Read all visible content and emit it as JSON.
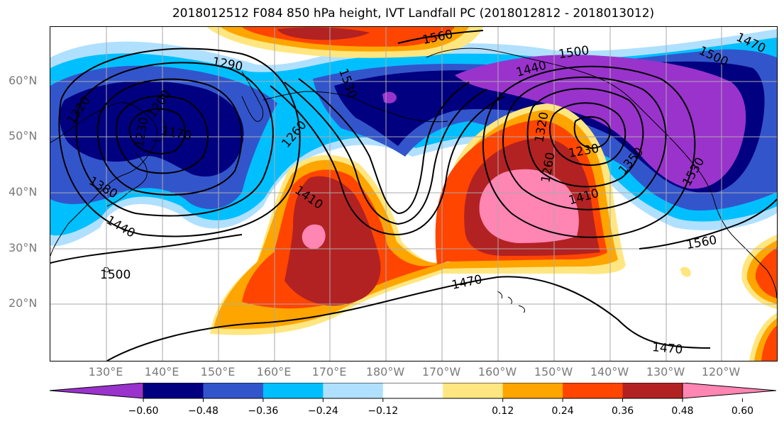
{
  "title": "2018012512 F084 850 hPa height, IVT Landfall PC (2018012812 - 2018013012)",
  "lat_ticks": [
    "60°N",
    "50°N",
    "40°N",
    "30°N",
    "20°N"
  ],
  "lon_ticks": [
    "130°E",
    "140°E",
    "150°E",
    "160°E",
    "170°E",
    "180°W",
    "170°W",
    "160°W",
    "150°W",
    "140°W",
    "130°W",
    "120°W"
  ],
  "contour_labels": [
    "1560",
    "1500",
    "1290",
    "1320",
    "1200",
    "1230",
    "1170",
    "1530",
    "1440",
    "1260",
    "1320",
    "1380",
    "1230",
    "1260",
    "1350",
    "1410",
    "1410",
    "1440",
    "1530",
    "1500",
    "1470",
    "1560",
    "1470",
    "1470",
    "1500"
  ],
  "colorbar": {
    "ticks": [
      "−0.60",
      "−0.48",
      "−0.36",
      "−0.24",
      "−0.12",
      "0.12",
      "0.24",
      "0.36",
      "0.48",
      "0.60"
    ],
    "colors": [
      "#9933cc",
      "#000080",
      "#3355cc",
      "#00bfff",
      "#b0e0ff",
      "#ffffff",
      "#ffe680",
      "#ffa500",
      "#ff4500",
      "#b22222",
      "#ff85b3"
    ]
  },
  "colors": {
    "strong_negative": "#9933cc",
    "dark_blue": "#000080",
    "medium_blue": "#3355cc",
    "deep_sky": "#00bfff",
    "light_blue": "#b0e0ff",
    "yellow": "#ffe680",
    "orange": "#ffa500",
    "orange_red": "#ff4500",
    "dark_red": "#b22222",
    "pink": "#ff85b3"
  }
}
